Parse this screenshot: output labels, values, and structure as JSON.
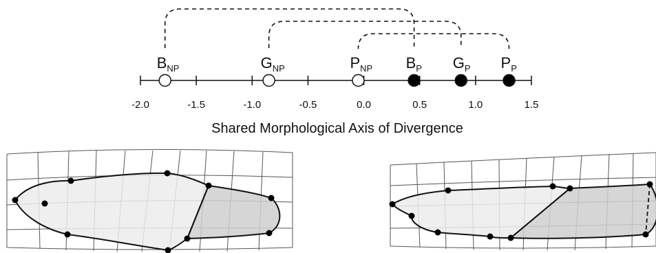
{
  "axis": {
    "title": "Shared Morphological Axis of Divergence",
    "ticks": [
      "-2.0",
      "-1.5",
      "-1.0",
      "-0.5",
      "0.0",
      "0.5",
      "1.0",
      "1.5"
    ]
  },
  "points": [
    {
      "main": "B",
      "sub": "NP",
      "value": -1.78,
      "filled": false
    },
    {
      "main": "G",
      "sub": "NP",
      "value": -0.85,
      "filled": false
    },
    {
      "main": "P",
      "sub": "NP",
      "value": -0.05,
      "filled": false
    },
    {
      "main": "B",
      "sub": "P",
      "value": 0.45,
      "filled": true
    },
    {
      "main": "G",
      "sub": "P",
      "value": 0.87,
      "filled": true
    },
    {
      "main": "P",
      "sub": "P",
      "value": 1.3,
      "filled": true
    }
  ],
  "links": [
    {
      "from": "B_NP",
      "to": "B_P"
    },
    {
      "from": "G_NP",
      "to": "G_P"
    },
    {
      "from": "P_NP",
      "to": "P_P"
    }
  ],
  "colors": {
    "open_marker": "#ffffff",
    "filled_marker": "#000000",
    "outline": "#111111",
    "grid": "#555555",
    "body_light": "#ececec",
    "body_dark": "#cfcfcf"
  }
}
